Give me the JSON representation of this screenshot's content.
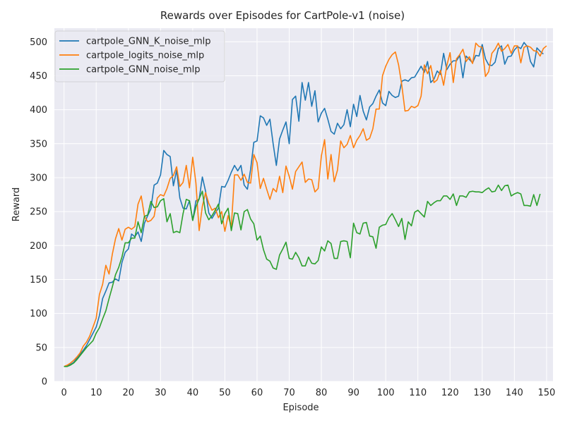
{
  "chart_data": {
    "type": "line",
    "title": "Rewards over Episodes for CartPole-v1 (noise)",
    "xlabel": "Episode",
    "ylabel": "Reward",
    "xlim": [
      -3,
      152
    ],
    "ylim": [
      0,
      520
    ],
    "xticks": [
      0,
      10,
      20,
      30,
      40,
      50,
      60,
      70,
      80,
      90,
      100,
      110,
      120,
      130,
      140,
      150
    ],
    "yticks": [
      0,
      50,
      100,
      150,
      200,
      250,
      300,
      350,
      400,
      450,
      500
    ],
    "grid": true,
    "legend": "top-left",
    "background": "#eaeaf2",
    "series": [
      {
        "name": "cartpole_GNN_K_noise_mlp",
        "color": "#1f77b4",
        "values": [
          22,
          23,
          25,
          28,
          34,
          40,
          46,
          53,
          62,
          71,
          80,
          97,
          122,
          133,
          145,
          146,
          151,
          148,
          175,
          190,
          195,
          217,
          213,
          220,
          206,
          233,
          244,
          254,
          289,
          292,
          304,
          340,
          334,
          331,
          288,
          311,
          270,
          255,
          254,
          266,
          237,
          266,
          268,
          301,
          280,
          248,
          240,
          248,
          255,
          287,
          286,
          296,
          308,
          318,
          310,
          318,
          289,
          283,
          312,
          352,
          354,
          391,
          388,
          377,
          386,
          350,
          318,
          357,
          370,
          382,
          350,
          415,
          420,
          383,
          440,
          414,
          440,
          405,
          428,
          382,
          395,
          402,
          386,
          368,
          364,
          380,
          372,
          378,
          400,
          375,
          408,
          390,
          421,
          398,
          385,
          404,
          409,
          420,
          429,
          410,
          406,
          427,
          421,
          418,
          420,
          442,
          444,
          442,
          447,
          448,
          456,
          464,
          455,
          471,
          440,
          445,
          457,
          452,
          483,
          459,
          467,
          472,
          472,
          480,
          447,
          479,
          474,
          469,
          480,
          479,
          496,
          475,
          466,
          465,
          470,
          490,
          494,
          467,
          478,
          479,
          488,
          493,
          490,
          499,
          493,
          471,
          463,
          491,
          486,
          482
        ]
      },
      {
        "name": "cartpole_logits_noise_mlp",
        "color": "#ff7f0e",
        "values": [
          22,
          24,
          27,
          31,
          36,
          42,
          52,
          58,
          67,
          80,
          93,
          128,
          143,
          171,
          158,
          187,
          210,
          225,
          208,
          224,
          227,
          224,
          228,
          261,
          273,
          243,
          235,
          237,
          243,
          270,
          275,
          273,
          284,
          299,
          303,
          316,
          287,
          293,
          318,
          285,
          330,
          292,
          222,
          258,
          278,
          262,
          252,
          255,
          241,
          250,
          221,
          244,
          228,
          304,
          304,
          296,
          305,
          293,
          292,
          334,
          322,
          284,
          299,
          283,
          268,
          284,
          279,
          302,
          278,
          317,
          302,
          283,
          309,
          316,
          323,
          293,
          298,
          297,
          279,
          284,
          332,
          356,
          298,
          334,
          294,
          311,
          354,
          344,
          349,
          362,
          344,
          355,
          362,
          372,
          355,
          358,
          372,
          401,
          401,
          450,
          464,
          474,
          481,
          485,
          466,
          436,
          398,
          399,
          405,
          403,
          406,
          420,
          466,
          453,
          465,
          440,
          444,
          458,
          436,
          465,
          484,
          440,
          475,
          481,
          489,
          471,
          478,
          468,
          498,
          493,
          492,
          449,
          456,
          483,
          489,
          498,
          486,
          490,
          496,
          483,
          494,
          494,
          469,
          492,
          494,
          492,
          487,
          486,
          479,
          490,
          494
        ]
      },
      {
        "name": "cartpole_GNN_noise_mlp",
        "color": "#2ca02c",
        "values": [
          22,
          22,
          24,
          27,
          32,
          38,
          44,
          50,
          55,
          60,
          71,
          79,
          92,
          104,
          122,
          139,
          157,
          168,
          183,
          204,
          204,
          211,
          211,
          235,
          219,
          243,
          245,
          265,
          256,
          257,
          266,
          269,
          235,
          247,
          219,
          221,
          219,
          247,
          268,
          266,
          237,
          257,
          269,
          280,
          248,
          238,
          244,
          252,
          261,
          232,
          247,
          255,
          222,
          248,
          247,
          223,
          250,
          253,
          239,
          232,
          208,
          214,
          194,
          180,
          177,
          167,
          165,
          186,
          195,
          205,
          181,
          180,
          190,
          182,
          170,
          170,
          183,
          174,
          173,
          178,
          198,
          192,
          207,
          203,
          181,
          181,
          206,
          207,
          206,
          182,
          233,
          219,
          217,
          233,
          234,
          214,
          213,
          196,
          227,
          230,
          231,
          241,
          247,
          238,
          228,
          240,
          209,
          235,
          229,
          249,
          252,
          247,
          242,
          265,
          259,
          263,
          266,
          266,
          273,
          273,
          268,
          276,
          259,
          273,
          273,
          271,
          279,
          280,
          279,
          279,
          278,
          282,
          285,
          279,
          280,
          289,
          281,
          288,
          289,
          273,
          276,
          278,
          276,
          259,
          259,
          258,
          275,
          259,
          276
        ]
      }
    ]
  }
}
